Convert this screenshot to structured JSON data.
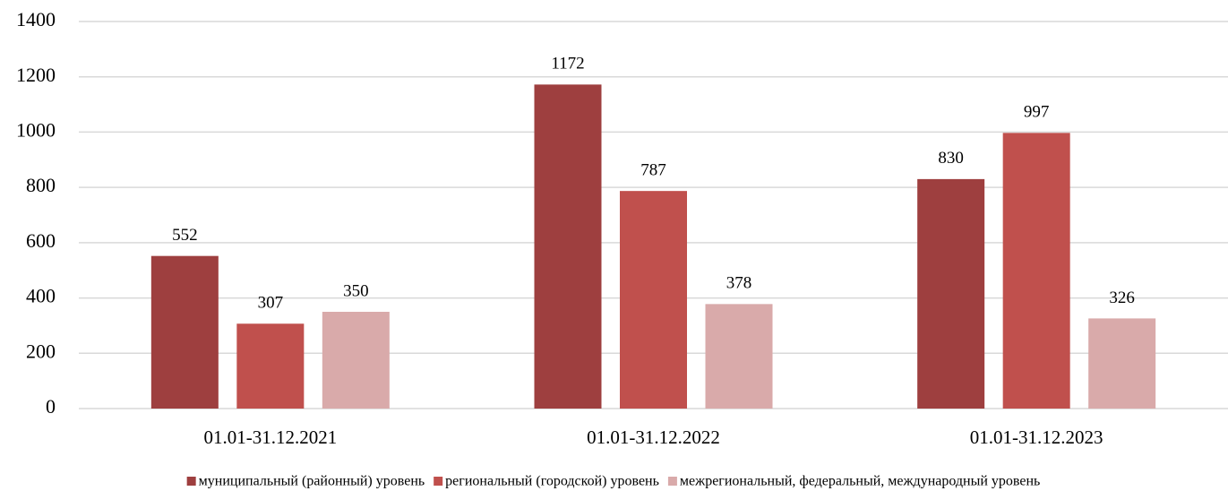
{
  "chart_data": {
    "type": "bar",
    "categories": [
      "01.01-31.12.2021",
      "01.01-31.12.2022",
      "01.01-31.12.2023"
    ],
    "series": [
      {
        "name": "муниципальный (районный) уровень",
        "color": "#9e3f3f",
        "values": [
          552,
          1172,
          830
        ]
      },
      {
        "name": "региональный (городской) уровень",
        "color": "#c0504d",
        "values": [
          307,
          787,
          997
        ]
      },
      {
        "name": "межрегиональный, федеральный, международный уровень",
        "color": "#d9aaaa",
        "values": [
          350,
          378,
          326
        ]
      }
    ],
    "ylim": [
      0,
      1400
    ],
    "yticks": [
      0,
      200,
      400,
      600,
      800,
      1000,
      1200,
      1400
    ],
    "grid": true,
    "legend": "bottom"
  }
}
